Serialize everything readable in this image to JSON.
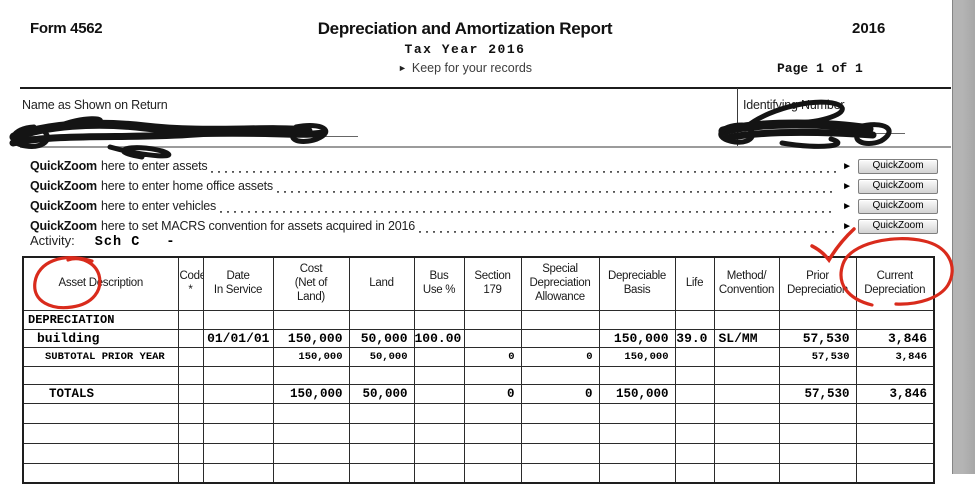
{
  "header": {
    "form_number": "Form 4562",
    "title": "Depreciation and Amortization Report",
    "year": "2016",
    "tax_year_line": "Tax Year 2016",
    "keep_arrow": "►",
    "keep_note": "Keep for your records",
    "page_label": "Page 1  of 1"
  },
  "identity": {
    "name_label": "Name as Shown on Return",
    "id_label": "Identifying Number"
  },
  "quickzoom": {
    "arrow": "►",
    "button_label": "QuickZoom",
    "rows": [
      {
        "keyword": "QuickZoom",
        "text": "here to enter assets"
      },
      {
        "keyword": "QuickZoom",
        "text": "here to enter home office assets"
      },
      {
        "keyword": "QuickZoom",
        "text": "here to enter vehicles"
      },
      {
        "keyword": "QuickZoom",
        "text": "here to set MACRS convention for assets acquired in 2016"
      }
    ]
  },
  "activity": {
    "label": "Activity:",
    "value": "Sch C",
    "suffix": "-"
  },
  "table": {
    "columns": [
      "Asset Description",
      "Code\n*",
      "Date\nIn Service",
      "Cost\n(Net of\nLand)",
      "Land",
      "Bus\nUse %",
      "Section\n179",
      "Special\nDepreciation\nAllowance",
      "Depreciable\nBasis",
      "Life",
      "Method/\nConvention",
      "Prior\nDepreciation",
      "Current\nDepreciation"
    ],
    "rows": [
      {
        "type": "section",
        "cells": [
          "DEPRECIATION",
          "",
          "",
          "",
          "",
          "",
          "",
          "",
          "",
          "",
          "",
          "",
          ""
        ]
      },
      {
        "type": "asset",
        "cells": [
          "building",
          "",
          "01/01/01",
          "150,000",
          "50,000",
          "100.00",
          "",
          "",
          "150,000",
          "39.0",
          "SL/MM",
          "57,530",
          "3,846"
        ]
      },
      {
        "type": "subtotal",
        "cells": [
          "SUBTOTAL PRIOR YEAR",
          "",
          "",
          "150,000",
          "50,000",
          "",
          "0",
          "0",
          "150,000",
          "",
          "",
          "57,530",
          "3,846"
        ]
      },
      {
        "type": "spacer",
        "cells": [
          "",
          "",
          "",
          "",
          "",
          "",
          "",
          "",
          "",
          "",
          "",
          "",
          ""
        ]
      },
      {
        "type": "totals",
        "cells": [
          "TOTALS",
          "",
          "",
          "150,000",
          "50,000",
          "",
          "0",
          "0",
          "150,000",
          "",
          "",
          "57,530",
          "3,846"
        ]
      },
      {
        "type": "empty",
        "cells": [
          "",
          "",
          "",
          "",
          "",
          "",
          "",
          "",
          "",
          "",
          "",
          "",
          ""
        ]
      },
      {
        "type": "empty",
        "cells": [
          "",
          "",
          "",
          "",
          "",
          "",
          "",
          "",
          "",
          "",
          "",
          "",
          ""
        ]
      },
      {
        "type": "empty",
        "cells": [
          "",
          "",
          "",
          "",
          "",
          "",
          "",
          "",
          "",
          "",
          "",
          "",
          ""
        ]
      },
      {
        "type": "empty",
        "cells": [
          "",
          "",
          "",
          "",
          "",
          "",
          "",
          "",
          "",
          "",
          "",
          "",
          ""
        ]
      }
    ]
  },
  "annotations": {
    "red_ink_color": "#d92b1c",
    "black_ink_color": "#141414",
    "marks": [
      "red-circle-around-asset-description",
      "red-checkmark-above-prior-depreciation",
      "red-circle-around-current-depreciation",
      "black-scribble-over-name",
      "black-scribble-over-identifying-number"
    ]
  },
  "window": {
    "right_strip_gray": "#adadad"
  }
}
